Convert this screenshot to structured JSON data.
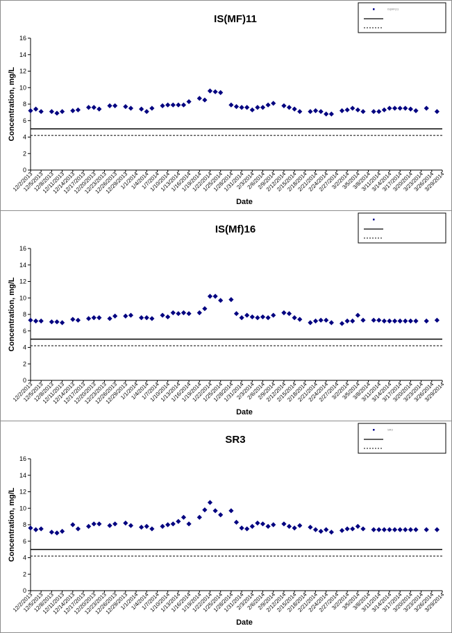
{
  "chart_data": [
    {
      "type": "scatter",
      "title": "IS(MF)11",
      "xlabel": "Date",
      "ylabel": "Concentration, mg/L",
      "ylim": [
        0,
        16
      ],
      "yticks": [
        0,
        2,
        4,
        6,
        8,
        10,
        12,
        14,
        16
      ],
      "x_tick_labels": [
        "12/2/2013",
        "12/5/2013",
        "12/8/2013",
        "12/11/2013",
        "12/14/2013",
        "12/17/2013",
        "12/20/2013",
        "12/23/2013",
        "12/26/2013",
        "12/29/2013",
        "1/1/2014",
        "1/4/2014",
        "1/7/2014",
        "1/10/2014",
        "1/13/2014",
        "1/16/2014",
        "1/19/2014",
        "1/22/2014",
        "1/25/2014",
        "1/28/2014",
        "1/31/2014",
        "2/3/2014",
        "2/6/2014",
        "2/9/2014",
        "2/12/2014",
        "2/15/2014",
        "2/18/2014",
        "2/21/2014",
        "2/24/2014",
        "2/27/2014",
        "3/2/2014",
        "3/5/2014",
        "3/8/2014",
        "3/11/2014",
        "3/14/2014",
        "3/17/2014",
        "3/20/2014",
        "3/23/2014",
        "3/26/2014",
        "3/29/2014"
      ],
      "legend": {
        "position": "top-right",
        "entries": [
          "IS(MF)11",
          "",
          ""
        ]
      },
      "grid": false,
      "series": [
        {
          "x": [
            0,
            1,
            2,
            4,
            5,
            6,
            8,
            9,
            11,
            12,
            13,
            15,
            16,
            18,
            19,
            21,
            22,
            23,
            25,
            26,
            27,
            28,
            29,
            30,
            32,
            33,
            34,
            35,
            36,
            38,
            39,
            40,
            41,
            42,
            43,
            44,
            45,
            46,
            48,
            49,
            50,
            51,
            53,
            54,
            55,
            56,
            57,
            59,
            60,
            61,
            62,
            63,
            65,
            66,
            67,
            68,
            69,
            70,
            71,
            72,
            73,
            75,
            77
          ],
          "y": [
            7.2,
            7.4,
            7.1,
            7.1,
            6.9,
            7.1,
            7.2,
            7.3,
            7.6,
            7.6,
            7.4,
            7.8,
            7.8,
            7.7,
            7.5,
            7.4,
            7.1,
            7.5,
            7.8,
            7.9,
            7.9,
            7.9,
            7.9,
            8.3,
            8.7,
            8.5,
            9.6,
            9.5,
            9.4,
            7.9,
            7.7,
            7.6,
            7.6,
            7.3,
            7.6,
            7.6,
            7.9,
            8.1,
            7.8,
            7.6,
            7.4,
            7.1,
            7.1,
            7.2,
            7.1,
            6.8,
            6.8,
            7.2,
            7.3,
            7.5,
            7.3,
            7.1,
            7.1,
            7.1,
            7.3,
            7.5,
            7.5,
            7.5,
            7.5,
            7.4,
            7.2,
            7.5,
            7.1
          ]
        },
        {
          "name": "",
          "constant": 5.0,
          "style": "solid"
        },
        {
          "name": "",
          "constant": 4.2,
          "style": "dashed"
        }
      ]
    },
    {
      "type": "scatter",
      "title": "IS(Mf)16",
      "xlabel": "Date",
      "ylabel": "Concentration, mg/L",
      "ylim": [
        0,
        16
      ],
      "yticks": [
        0,
        2,
        4,
        6,
        8,
        10,
        12,
        14,
        16
      ],
      "x_tick_labels": [
        "12/2/2013",
        "12/5/2013",
        "12/8/2013",
        "12/11/2013",
        "12/14/2013",
        "12/17/2013",
        "12/20/2013",
        "12/23/2013",
        "12/26/2013",
        "12/29/2013",
        "1/1/2014",
        "1/4/2014",
        "1/7/2014",
        "1/10/2014",
        "1/13/2014",
        "1/16/2014",
        "1/19/2014",
        "1/22/2014",
        "1/25/2014",
        "1/28/2014",
        "1/31/2014",
        "2/3/2014",
        "2/6/2014",
        "2/9/2014",
        "2/12/2014",
        "2/15/2014",
        "2/18/2014",
        "2/21/2014",
        "2/24/2014",
        "2/27/2014",
        "3/2/2014",
        "3/5/2014",
        "3/8/2014",
        "3/11/2014",
        "3/14/2014",
        "3/17/2014",
        "3/20/2014",
        "3/23/2014",
        "3/26/2014",
        "3/29/2014"
      ],
      "legend": {
        "position": "top-right",
        "entries": [
          "",
          "",
          ""
        ]
      },
      "grid": false,
      "series": [
        {
          "x": [
            0,
            1,
            2,
            4,
            5,
            6,
            8,
            9,
            11,
            12,
            13,
            15,
            16,
            18,
            19,
            21,
            22,
            23,
            25,
            26,
            27,
            28,
            29,
            30,
            32,
            33,
            34,
            35,
            36,
            38,
            39,
            40,
            41,
            42,
            43,
            44,
            45,
            46,
            48,
            49,
            50,
            51,
            53,
            54,
            55,
            56,
            57,
            59,
            60,
            61,
            62,
            63,
            65,
            66,
            67,
            68,
            69,
            70,
            71,
            72,
            73,
            75,
            77
          ],
          "y": [
            7.3,
            7.2,
            7.2,
            7.1,
            7.1,
            7.0,
            7.4,
            7.3,
            7.5,
            7.6,
            7.6,
            7.5,
            7.8,
            7.8,
            7.9,
            7.6,
            7.6,
            7.5,
            7.9,
            7.7,
            8.2,
            8.1,
            8.2,
            8.1,
            8.2,
            8.7,
            10.2,
            10.2,
            9.7,
            9.8,
            8.1,
            7.6,
            7.9,
            7.7,
            7.6,
            7.7,
            7.6,
            7.9,
            8.2,
            8.1,
            7.6,
            7.4,
            7.0,
            7.2,
            7.3,
            7.3,
            7.0,
            6.9,
            7.2,
            7.2,
            7.9,
            7.3,
            7.3,
            7.3,
            7.2,
            7.2,
            7.2,
            7.2,
            7.2,
            7.2,
            7.2,
            7.2,
            7.3
          ]
        },
        {
          "name": "",
          "constant": 5.0,
          "style": "solid"
        },
        {
          "name": "",
          "constant": 4.2,
          "style": "dashed"
        }
      ]
    },
    {
      "type": "scatter",
      "title": "SR3",
      "xlabel": "Date",
      "ylabel": "Concentration, mg/L",
      "ylim": [
        0,
        16
      ],
      "yticks": [
        0,
        2,
        4,
        6,
        8,
        10,
        12,
        14,
        16
      ],
      "x_tick_labels": [
        "12/2/2013",
        "12/5/2013",
        "12/8/2013",
        "12/11/2013",
        "12/14/2013",
        "12/17/2013",
        "12/20/2013",
        "12/23/2013",
        "12/26/2013",
        "12/29/2013",
        "1/1/2014",
        "1/4/2014",
        "1/7/2014",
        "1/10/2014",
        "1/13/2014",
        "1/16/2014",
        "1/19/2014",
        "1/22/2014",
        "1/25/2014",
        "1/28/2014",
        "1/31/2014",
        "2/3/2014",
        "2/6/2014",
        "2/9/2014",
        "2/12/2014",
        "2/15/2014",
        "2/18/2014",
        "2/21/2014",
        "2/24/2014",
        "2/27/2014",
        "3/2/2014",
        "3/5/2014",
        "3/8/2014",
        "3/11/2014",
        "3/14/2014",
        "3/17/2014",
        "3/20/2014",
        "3/23/2014",
        "3/26/2014",
        "3/29/2014"
      ],
      "legend": {
        "position": "top-right",
        "entries": [
          "SR3",
          "",
          ""
        ]
      },
      "grid": false,
      "series": [
        {
          "x": [
            0,
            1,
            2,
            4,
            5,
            6,
            8,
            9,
            11,
            12,
            13,
            15,
            16,
            18,
            19,
            21,
            22,
            23,
            25,
            26,
            27,
            28,
            29,
            30,
            32,
            33,
            34,
            35,
            36,
            38,
            39,
            40,
            41,
            42,
            43,
            44,
            45,
            46,
            48,
            49,
            50,
            51,
            53,
            54,
            55,
            56,
            57,
            59,
            60,
            61,
            62,
            63,
            65,
            66,
            67,
            68,
            69,
            70,
            71,
            72,
            73,
            75,
            77
          ],
          "y": [
            7.6,
            7.4,
            7.5,
            7.1,
            7.0,
            7.2,
            8.0,
            7.5,
            7.8,
            8.1,
            8.1,
            7.9,
            8.1,
            8.2,
            7.9,
            7.7,
            7.8,
            7.5,
            7.8,
            8.0,
            8.1,
            8.4,
            8.9,
            8.1,
            8.9,
            9.8,
            10.7,
            9.7,
            9.2,
            9.7,
            8.3,
            7.6,
            7.5,
            7.8,
            8.2,
            8.1,
            7.8,
            8.0,
            8.1,
            7.8,
            7.6,
            7.9,
            7.7,
            7.4,
            7.2,
            7.4,
            7.1,
            7.3,
            7.5,
            7.5,
            7.8,
            7.5,
            7.4,
            7.4,
            7.4,
            7.4,
            7.4,
            7.4,
            7.4,
            7.4,
            7.4,
            7.4,
            7.4
          ]
        },
        {
          "name": "",
          "constant": 5.0,
          "style": "solid"
        },
        {
          "name": "",
          "constant": 4.2,
          "style": "dashed"
        }
      ]
    }
  ]
}
